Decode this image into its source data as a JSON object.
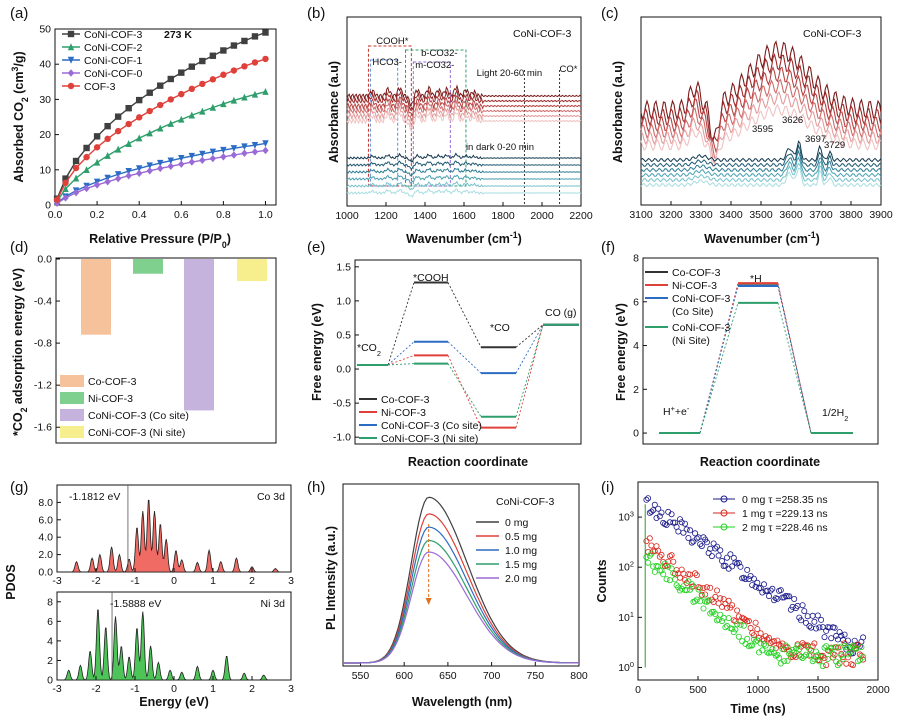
{
  "figure": {
    "panel_labels": [
      "(a)",
      "(b)",
      "(c)",
      "(d)",
      "(e)",
      "(f)",
      "(g)",
      "(h)",
      "(i)"
    ]
  },
  "chart_data": [
    {
      "panel": "(a)",
      "type": "line",
      "xlabel": "Relative Pressure (P/P0)",
      "ylabel": "Absorbed CO2 (cm3/g)",
      "annotation": "273 K",
      "xlim": [
        0,
        1.05
      ],
      "ylim": [
        0,
        50
      ],
      "xticks": [
        "0.0",
        "0.2",
        "0.4",
        "0.6",
        "0.8",
        "1.0"
      ],
      "yticks": [
        "0",
        "10",
        "20",
        "30",
        "40",
        "50"
      ],
      "x": [
        0.01,
        0.05,
        0.1,
        0.15,
        0.2,
        0.25,
        0.3,
        0.35,
        0.4,
        0.45,
        0.5,
        0.55,
        0.6,
        0.65,
        0.7,
        0.75,
        0.8,
        0.85,
        0.9,
        0.95,
        1.0
      ],
      "series": [
        {
          "name": "CoNi-COF-3",
          "color": "#404040",
          "marker": "square",
          "values": [
            1.8,
            7.5,
            12.5,
            16.2,
            19.5,
            22.4,
            25.1,
            27.5,
            29.8,
            31.9,
            33.9,
            35.8,
            37.6,
            39.3,
            40.9,
            42.4,
            43.9,
            45.3,
            46.6,
            47.9,
            49.0
          ]
        },
        {
          "name": "CoNi-COF-2",
          "color": "#2e9e6b",
          "marker": "triangle",
          "values": [
            1.1,
            4.6,
            7.6,
            10.0,
            12.1,
            14.0,
            15.8,
            17.4,
            19.0,
            20.4,
            21.8,
            23.1,
            24.3,
            25.5,
            26.6,
            27.7,
            28.7,
            29.7,
            30.6,
            31.4,
            32.2
          ]
        },
        {
          "name": "CoNi-COF-1",
          "color": "#2b6cc4",
          "marker": "triangle-down",
          "values": [
            0.6,
            2.4,
            4.1,
            5.4,
            6.6,
            7.7,
            8.7,
            9.6,
            10.4,
            11.2,
            11.9,
            12.6,
            13.3,
            13.9,
            14.5,
            15.1,
            15.6,
            16.1,
            16.6,
            17.0,
            17.5
          ]
        },
        {
          "name": "CoNi-COF-0",
          "color": "#9a6ad6",
          "marker": "diamond",
          "values": [
            0.5,
            2.0,
            3.5,
            4.7,
            5.7,
            6.6,
            7.5,
            8.3,
            9.0,
            9.7,
            10.4,
            11.0,
            11.6,
            12.2,
            12.7,
            13.2,
            13.7,
            14.2,
            14.7,
            15.1,
            15.5
          ]
        },
        {
          "name": "COF-3",
          "color": "#e0403a",
          "marker": "circle",
          "values": [
            1.5,
            6.3,
            10.5,
            13.6,
            16.4,
            18.8,
            21.0,
            23.0,
            24.9,
            26.7,
            28.4,
            30.0,
            31.5,
            33.0,
            34.4,
            35.7,
            37.0,
            38.2,
            39.4,
            40.5,
            41.5
          ]
        }
      ]
    },
    {
      "panel": "(b)",
      "type": "line",
      "title": "CoNi-COF-3",
      "xlabel": "Wavenumber (cm-1)",
      "ylabel": "Absorbance (a.u)",
      "xlim": [
        1000,
        2200
      ],
      "xticks": [
        "1000",
        "1200",
        "1400",
        "1600",
        "1800",
        "2000",
        "2200"
      ],
      "annotations": [
        "COOH*",
        "HCO3-",
        "b-CO32-",
        "m-CO32-",
        "Light 20-60 min",
        "in dark 0-20 min",
        "CO*"
      ]
    },
    {
      "panel": "(c)",
      "type": "line",
      "title": "CoNi-COF-3",
      "xlabel": "Wavenumber (cm-1)",
      "ylabel": "Absorbance (a.u)",
      "xlim": [
        3100,
        3900
      ],
      "xticks": [
        "3100",
        "3200",
        "3300",
        "3400",
        "3500",
        "3600",
        "3700",
        "3800",
        "3900"
      ],
      "peak_labels": [
        "3595",
        "3626",
        "3697",
        "3729"
      ]
    },
    {
      "panel": "(d)",
      "type": "bar",
      "ylabel": "*CO2 adsorption energy (eV)",
      "ylim": [
        -1.75,
        0
      ],
      "yticks": [
        "0.0",
        "-0.4",
        "-0.8",
        "-1.2",
        "-1.6"
      ],
      "categories": [
        "Co-COF-3",
        "Ni-COF-3",
        "CoNi-COF-3 (Co site)",
        "CoNi-COF-3 (Ni site)"
      ],
      "values": [
        -0.72,
        -0.14,
        -1.44,
        -0.21
      ],
      "colors": [
        "#f6c29c",
        "#7fcf8f",
        "#c5b3dd",
        "#f7ee8e"
      ]
    },
    {
      "panel": "(e)",
      "type": "line",
      "xlabel": "Reaction coordinate",
      "ylabel": "Free energy (eV)",
      "ylim": [
        -1.1,
        1.6
      ],
      "yticks": [
        "-1.0",
        "-0.5",
        "0.0",
        "0.5",
        "1.0",
        "1.5"
      ],
      "states": [
        "*CO2",
        "*COOH",
        "*CO",
        "CO (g)"
      ],
      "series": [
        {
          "name": "Co-COF-3",
          "color": "#333333",
          "values": [
            0.06,
            1.27,
            0.32,
            0.65
          ]
        },
        {
          "name": "Ni-COF-3",
          "color": "#e0403a",
          "values": [
            0.06,
            0.2,
            -0.86,
            0.65
          ]
        },
        {
          "name": "CoNi-COF-3 (Co site)",
          "color": "#2b6cc4",
          "values": [
            0.06,
            0.4,
            -0.06,
            0.65
          ]
        },
        {
          "name": "CoNi-COF-3 (Ni site)",
          "color": "#2e9e6b",
          "values": [
            0.06,
            0.08,
            -0.7,
            0.65
          ]
        }
      ]
    },
    {
      "panel": "(f)",
      "type": "line",
      "xlabel": "Reaction coordinate",
      "ylabel": "Free energy (eV)",
      "ylim": [
        -0.5,
        8
      ],
      "yticks": [
        "0",
        "2",
        "4",
        "6",
        "8"
      ],
      "states": [
        "H++e-",
        "*H",
        "1/2H2"
      ],
      "series": [
        {
          "name": "Co-COF-3",
          "color": "#333333",
          "values": [
            0,
            6.75,
            0
          ]
        },
        {
          "name": "Ni-COF-3",
          "color": "#e0403a",
          "values": [
            0,
            6.85,
            0
          ]
        },
        {
          "name": "CoNi-COF-3 (Co Site)",
          "color": "#2b6cc4",
          "values": [
            0,
            6.72,
            0
          ]
        },
        {
          "name": "CoNi-COF-3 (Ni Site)",
          "color": "#2e9e6b",
          "values": [
            0,
            5.95,
            0
          ]
        }
      ]
    },
    {
      "panel": "(g)",
      "type": "area",
      "xlabel": "Energy (eV)",
      "ylabel": "PDOS",
      "subplots": [
        {
          "name": "Co 3d",
          "annotation": "-1.1812 eV",
          "color": "#ef6b64",
          "ylim": [
            0,
            10
          ],
          "yticks": [
            "0.0",
            "2.0",
            "4.0",
            "6.0",
            "8.0"
          ]
        },
        {
          "name": "Ni 3d",
          "annotation": "-1.5888 eV",
          "color": "#4cc457",
          "ylim": [
            0,
            9
          ],
          "yticks": [
            "0",
            "2",
            "4",
            "6",
            "8"
          ]
        }
      ],
      "xticks": [
        "-3",
        "-2",
        "-1",
        "0",
        "1",
        "2",
        "3"
      ]
    },
    {
      "panel": "(h)",
      "type": "line",
      "title": "CoNi-COF-3",
      "xlabel": "Wavelength (nm)",
      "ylabel": "PL Intensity (a.u.)",
      "xlim": [
        530,
        800
      ],
      "xticks": [
        "550",
        "600",
        "650",
        "700",
        "750",
        "800"
      ],
      "series": [
        {
          "name": "0 mg",
          "color": "#404040",
          "peak": 1.0
        },
        {
          "name": "0.5 mg",
          "color": "#e0403a",
          "peak": 0.9
        },
        {
          "name": "1.0 mg",
          "color": "#2b6cc4",
          "peak": 0.82
        },
        {
          "name": "1.5 mg",
          "color": "#2e9e6b",
          "peak": 0.74
        },
        {
          "name": "2.0 mg",
          "color": "#9a6ad6",
          "peak": 0.67
        }
      ]
    },
    {
      "panel": "(i)",
      "type": "scatter",
      "xlabel": "Time (ns)",
      "ylabel": "Counts",
      "yscale": "log",
      "xlim": [
        0,
        2000
      ],
      "xticks": [
        "0",
        "500",
        "1000",
        "1500",
        "2000"
      ],
      "yticks": [
        "10^0",
        "10^1",
        "10^2",
        "10^3"
      ],
      "series": [
        {
          "name": "0 mg τ =258.35 ns",
          "color": "#1a1a8a",
          "tau": 258.35,
          "peak": 1800
        },
        {
          "name": "1 mg τ =229.13 ns",
          "color": "#d9261c",
          "tau": 229.13,
          "peak": 300
        },
        {
          "name": "2 mg τ =228.46 ns",
          "color": "#1fd11f",
          "tau": 228.46,
          "peak": 160
        }
      ]
    }
  ]
}
